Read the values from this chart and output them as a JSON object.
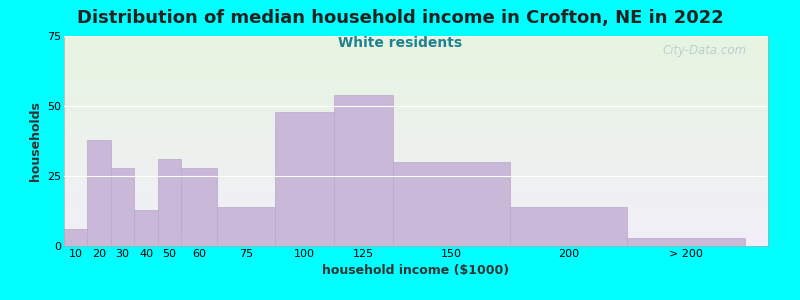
{
  "title": "Distribution of median household income in Crofton, NE in 2022",
  "subtitle": "White residents",
  "xlabel": "household income ($1000)",
  "ylabel": "households",
  "bar_color": "#c9b8d8",
  "bar_edge_color": "#b8a8cc",
  "background_color": "#00ffff",
  "plot_bg_top": "#e6f4e0",
  "plot_bg_bottom": "#f2eef8",
  "categories": [
    "10",
    "20",
    "30",
    "40",
    "50",
    "60",
    "75",
    "100",
    "125",
    "150",
    "200",
    "> 200"
  ],
  "values": [
    6,
    38,
    28,
    13,
    31,
    28,
    14,
    48,
    54,
    30,
    14,
    3
  ],
  "bar_widths": [
    10,
    10,
    10,
    10,
    10,
    15,
    25,
    25,
    25,
    50,
    50,
    50
  ],
  "bar_lefts": [
    10,
    20,
    30,
    40,
    50,
    60,
    75,
    100,
    125,
    150,
    200,
    250
  ],
  "ylim": [
    0,
    75
  ],
  "yticks": [
    0,
    25,
    50,
    75
  ],
  "title_fontsize": 13,
  "subtitle_fontsize": 10,
  "axis_label_fontsize": 9,
  "tick_fontsize": 8,
  "title_color": "#222222",
  "subtitle_color": "#208090",
  "watermark": "City-Data.com"
}
